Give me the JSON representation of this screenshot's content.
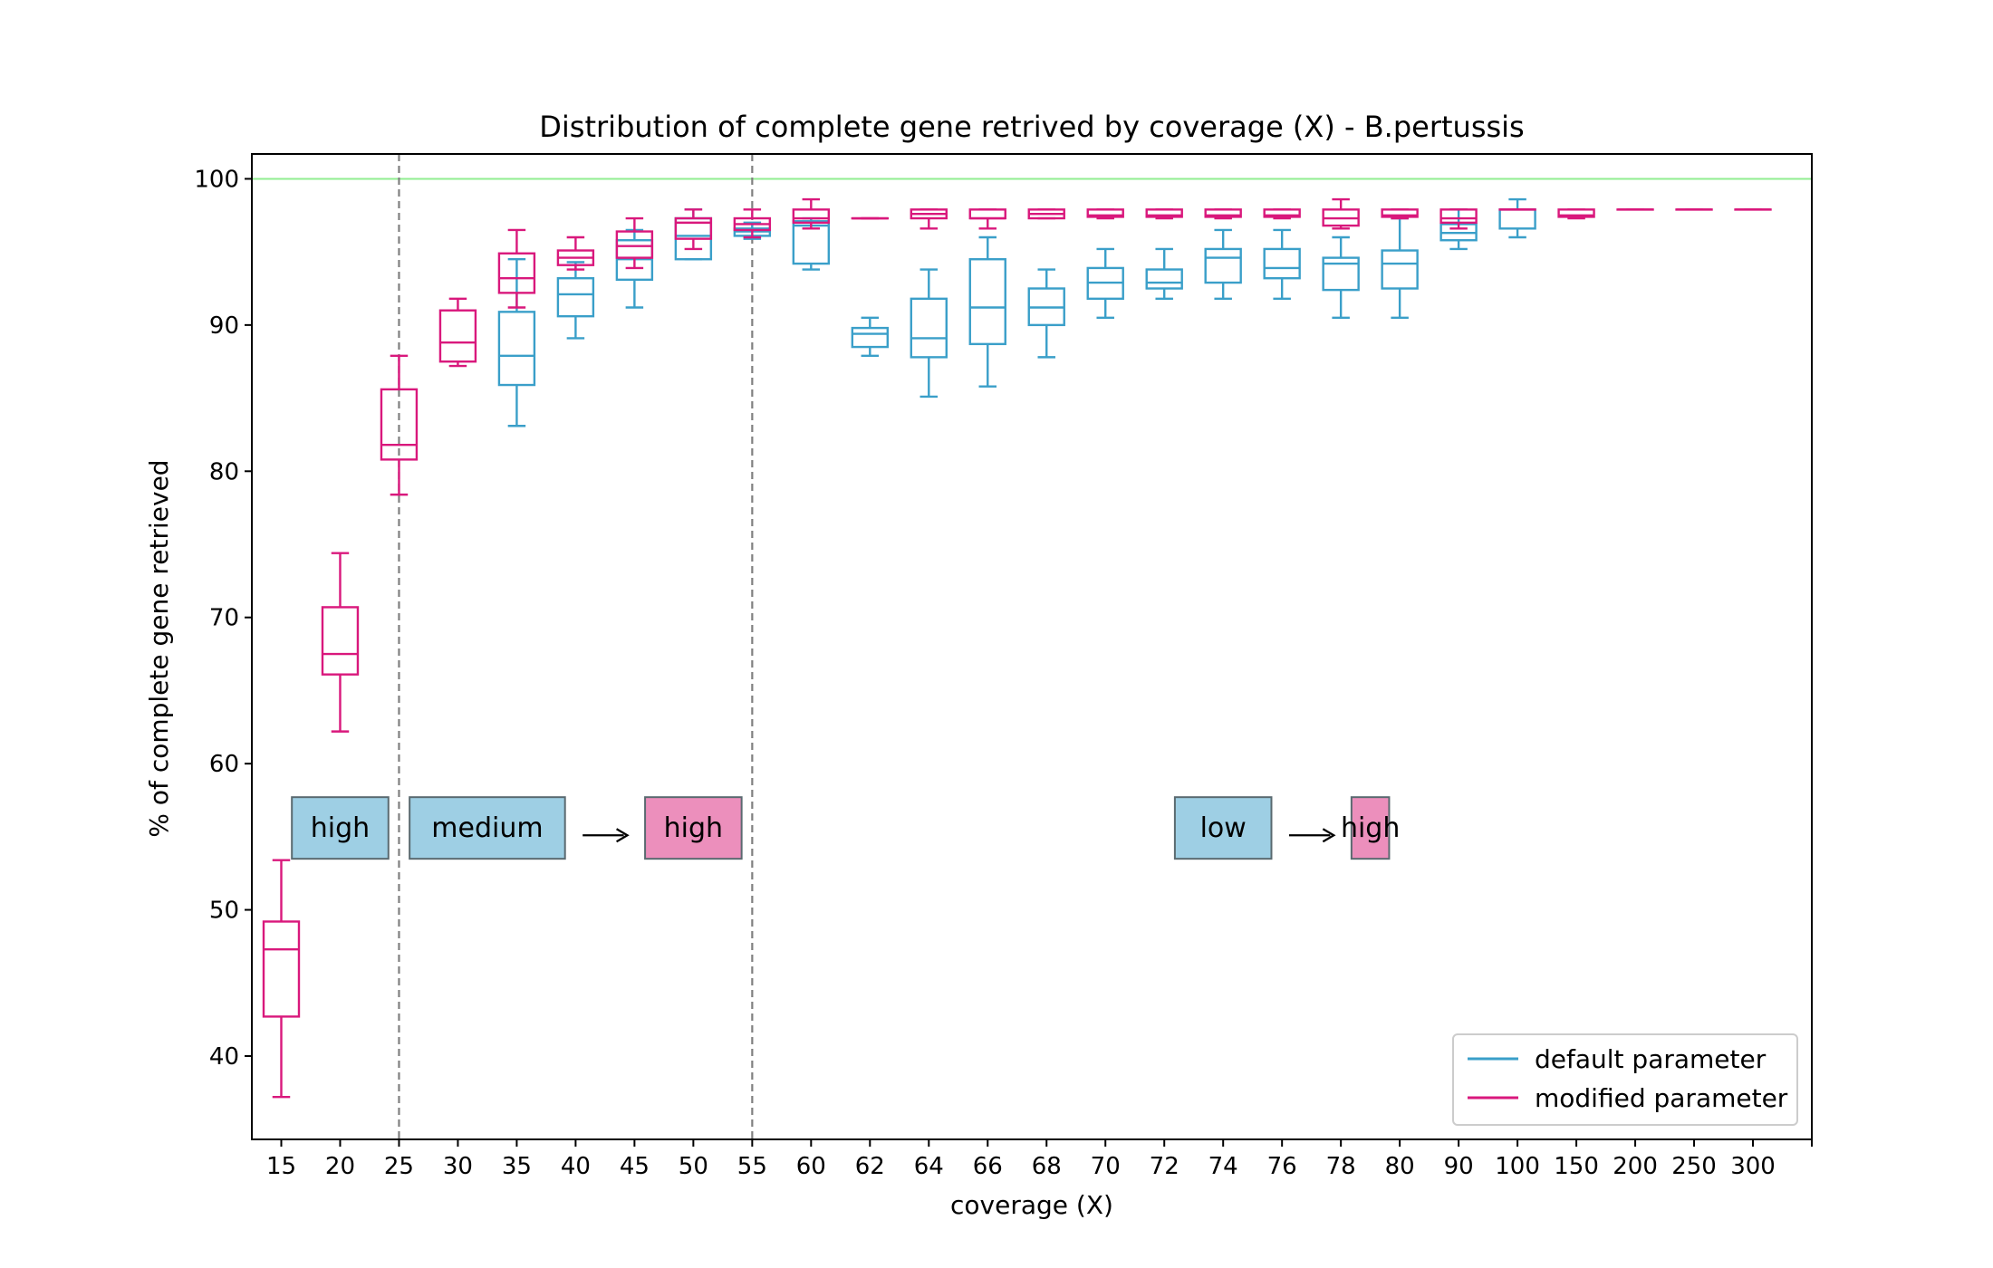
{
  "chart_data": {
    "type": "box",
    "title": "Distribution of complete gene retrived by coverage (X) - B.pertussis",
    "xlabel": "coverage (X)",
    "ylabel": "% of complete gene retrieved",
    "categories": [
      "15",
      "20",
      "25",
      "30",
      "35",
      "40",
      "45",
      "50",
      "55",
      "60",
      "62",
      "64",
      "66",
      "68",
      "70",
      "72",
      "74",
      "76",
      "78",
      "80",
      "90",
      "100",
      "150",
      "200",
      "250",
      "300"
    ],
    "ylim": [
      34.3,
      101.7
    ],
    "yticks": [
      40,
      50,
      60,
      70,
      80,
      90,
      100
    ],
    "reference_line": {
      "y": 100,
      "color": "#90ee90"
    },
    "vlines": [
      {
        "category": "25"
      },
      {
        "category": "55"
      }
    ],
    "legend": {
      "position": "lower right"
    },
    "series": [
      {
        "name": "default parameter",
        "color": "#3a9fc9",
        "boxes": [
          {
            "cat": "35",
            "min": 83.1,
            "q1": 85.9,
            "med": 87.9,
            "q3": 90.9,
            "max": 94.5
          },
          {
            "cat": "40",
            "min": 89.1,
            "q1": 90.6,
            "med": 92.1,
            "q3": 93.2,
            "max": 94.3
          },
          {
            "cat": "45",
            "min": 91.2,
            "q1": 93.1,
            "med": 94.5,
            "q3": 95.8,
            "max": 96.5
          },
          {
            "cat": "50",
            "min": 94.5,
            "q1": 94.5,
            "med": 96.1,
            "q3": 97.3,
            "max": 97.9
          },
          {
            "cat": "55",
            "min": 95.9,
            "q1": 96.1,
            "med": 96.4,
            "q3": 96.6,
            "max": 97.0
          },
          {
            "cat": "60",
            "min": 93.8,
            "q1": 94.2,
            "med": 96.8,
            "q3": 97.1,
            "max": 97.3
          },
          {
            "cat": "62",
            "min": 87.9,
            "q1": 88.5,
            "med": 89.4,
            "q3": 89.8,
            "max": 90.5
          },
          {
            "cat": "64",
            "min": 85.1,
            "q1": 87.8,
            "med": 89.1,
            "q3": 91.8,
            "max": 93.8
          },
          {
            "cat": "66",
            "min": 85.8,
            "q1": 88.7,
            "med": 91.2,
            "q3": 94.5,
            "max": 96.0
          },
          {
            "cat": "68",
            "min": 87.8,
            "q1": 90.0,
            "med": 91.2,
            "q3": 92.5,
            "max": 93.8
          },
          {
            "cat": "70",
            "min": 90.5,
            "q1": 91.8,
            "med": 92.9,
            "q3": 93.9,
            "max": 95.2
          },
          {
            "cat": "72",
            "min": 91.8,
            "q1": 92.5,
            "med": 92.9,
            "q3": 93.8,
            "max": 95.2
          },
          {
            "cat": "74",
            "min": 91.8,
            "q1": 92.9,
            "med": 94.6,
            "q3": 95.2,
            "max": 96.5
          },
          {
            "cat": "76",
            "min": 91.8,
            "q1": 93.2,
            "med": 93.9,
            "q3": 95.2,
            "max": 96.5
          },
          {
            "cat": "78",
            "min": 90.5,
            "q1": 92.4,
            "med": 94.2,
            "q3": 94.6,
            "max": 96.0
          },
          {
            "cat": "80",
            "min": 90.5,
            "q1": 92.5,
            "med": 94.2,
            "q3": 95.1,
            "max": 97.3
          },
          {
            "cat": "90",
            "min": 95.2,
            "q1": 95.8,
            "med": 96.3,
            "q3": 96.9,
            "max": 97.9
          },
          {
            "cat": "100",
            "min": 96.0,
            "q1": 96.6,
            "med": 97.9,
            "q3": 97.9,
            "max": 98.6
          }
        ]
      },
      {
        "name": "modified parameter",
        "color": "#d9187c",
        "boxes": [
          {
            "cat": "15",
            "min": 37.2,
            "q1": 42.7,
            "med": 47.3,
            "q3": 49.2,
            "max": 53.4
          },
          {
            "cat": "20",
            "min": 62.2,
            "q1": 66.1,
            "med": 67.5,
            "q3": 70.7,
            "max": 74.4
          },
          {
            "cat": "25",
            "min": 78.4,
            "q1": 80.8,
            "med": 81.8,
            "q3": 85.6,
            "max": 87.9
          },
          {
            "cat": "30",
            "min": 87.2,
            "q1": 87.5,
            "med": 88.8,
            "q3": 91.0,
            "max": 91.8
          },
          {
            "cat": "35",
            "min": 91.2,
            "q1": 92.2,
            "med": 93.2,
            "q3": 94.9,
            "max": 96.5
          },
          {
            "cat": "40",
            "min": 93.8,
            "q1": 94.1,
            "med": 94.6,
            "q3": 95.1,
            "max": 96.0
          },
          {
            "cat": "45",
            "min": 93.9,
            "q1": 94.6,
            "med": 95.4,
            "q3": 96.4,
            "max": 97.3
          },
          {
            "cat": "50",
            "min": 95.2,
            "q1": 95.9,
            "med": 97.0,
            "q3": 97.3,
            "max": 97.9
          },
          {
            "cat": "55",
            "min": 96.0,
            "q1": 96.5,
            "med": 96.9,
            "q3": 97.3,
            "max": 97.9
          },
          {
            "cat": "60",
            "min": 96.6,
            "q1": 97.0,
            "med": 97.3,
            "q3": 97.9,
            "max": 98.6
          },
          {
            "cat": "62",
            "min": 97.3,
            "q1": 97.3,
            "med": 97.3,
            "q3": 97.3,
            "max": 97.3
          },
          {
            "cat": "64",
            "min": 96.6,
            "q1": 97.3,
            "med": 97.6,
            "q3": 97.9,
            "max": 97.9
          },
          {
            "cat": "66",
            "min": 96.6,
            "q1": 97.3,
            "med": 97.3,
            "q3": 97.9,
            "max": 97.9
          },
          {
            "cat": "68",
            "min": 97.3,
            "q1": 97.3,
            "med": 97.6,
            "q3": 97.9,
            "max": 97.9
          },
          {
            "cat": "70",
            "min": 97.3,
            "q1": 97.4,
            "med": 97.5,
            "q3": 97.9,
            "max": 97.9
          },
          {
            "cat": "72",
            "min": 97.3,
            "q1": 97.4,
            "med": 97.5,
            "q3": 97.9,
            "max": 97.9
          },
          {
            "cat": "74",
            "min": 97.3,
            "q1": 97.4,
            "med": 97.5,
            "q3": 97.9,
            "max": 97.9
          },
          {
            "cat": "76",
            "min": 97.3,
            "q1": 97.4,
            "med": 97.5,
            "q3": 97.9,
            "max": 97.9
          },
          {
            "cat": "78",
            "min": 96.6,
            "q1": 96.8,
            "med": 97.3,
            "q3": 97.9,
            "max": 98.6
          },
          {
            "cat": "80",
            "min": 97.3,
            "q1": 97.4,
            "med": 97.5,
            "q3": 97.9,
            "max": 97.9
          },
          {
            "cat": "90",
            "min": 96.6,
            "q1": 97.0,
            "med": 97.3,
            "q3": 97.9,
            "max": 97.9
          },
          {
            "cat": "100",
            "min": 97.9,
            "q1": 97.9,
            "med": 97.9,
            "q3": 97.9,
            "max": 97.9
          },
          {
            "cat": "150",
            "min": 97.3,
            "q1": 97.4,
            "med": 97.5,
            "q3": 97.9,
            "max": 97.9
          },
          {
            "cat": "200",
            "min": 97.9,
            "q1": 97.9,
            "med": 97.9,
            "q3": 97.9,
            "max": 97.9
          },
          {
            "cat": "250",
            "min": 97.9,
            "q1": 97.9,
            "med": 97.9,
            "q3": 97.9,
            "max": 97.9
          },
          {
            "cat": "300",
            "min": 97.9,
            "q1": 97.9,
            "med": 97.9,
            "q3": 97.9,
            "max": 97.9
          }
        ]
      }
    ],
    "annotations": [
      {
        "text": "high",
        "style": "default",
        "cat_from": "15",
        "cat_to": "25",
        "y": 55.6
      },
      {
        "text": "medium",
        "style": "default",
        "cat_from": "25",
        "cat_to": "40",
        "y": 55.6
      },
      {
        "text": "high",
        "style": "modified",
        "cat_from": "45",
        "cat_to": "55",
        "y": 55.6
      },
      {
        "text": "low",
        "style": "default",
        "cat_from": "72",
        "cat_to": "76",
        "y": 55.6
      },
      {
        "text": "high",
        "style": "modified",
        "cat_from": "78",
        "cat_to": "80",
        "y": 55.6
      }
    ],
    "arrows": [
      {
        "from_cat": "40",
        "to_cat": "45",
        "y": 55.1
      },
      {
        "from_cat": "76",
        "to_cat": "78",
        "y": 55.1
      }
    ],
    "annotation_colors": {
      "default": "#9ecfe4",
      "modified": "#ec8fbc"
    }
  }
}
